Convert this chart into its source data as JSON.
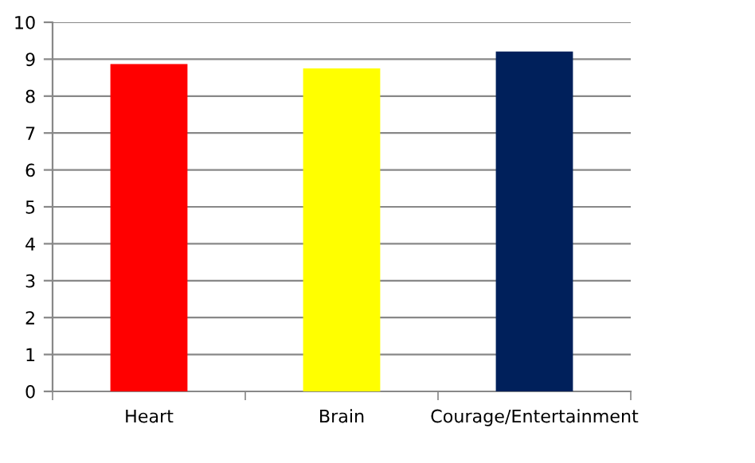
{
  "chart_data": {
    "type": "bar",
    "categories": [
      "Heart",
      "Brain",
      "Courage/Entertainment"
    ],
    "values": [
      8.87,
      8.75,
      9.21
    ],
    "colors": [
      "#ff0000",
      "#ffff00",
      "#00205b"
    ],
    "ylim": [
      0,
      10
    ],
    "yticks": [
      0,
      1,
      2,
      3,
      4,
      5,
      6,
      7,
      8,
      9,
      10
    ],
    "grid": "y",
    "legend": false
  }
}
